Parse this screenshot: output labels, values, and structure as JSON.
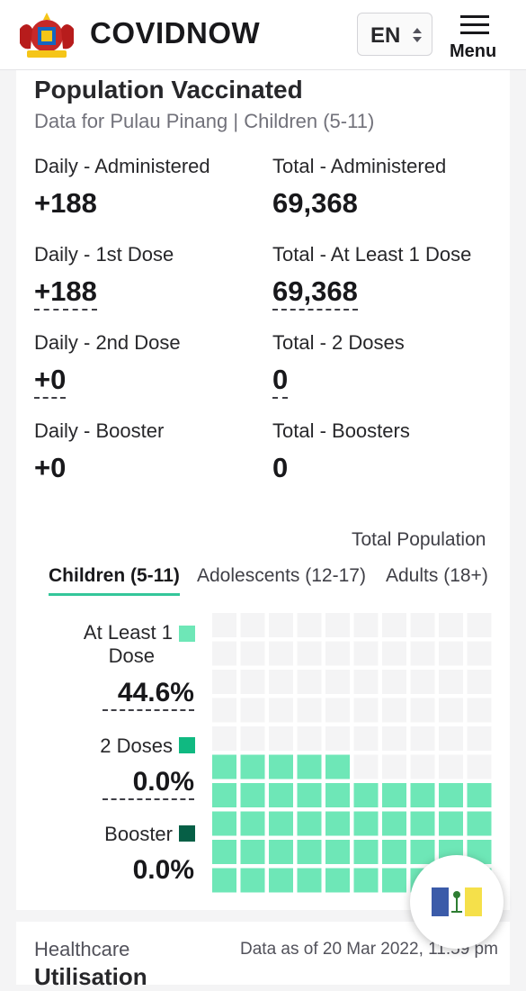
{
  "header": {
    "brand": "COVIDNOW",
    "language": "EN",
    "menu_label": "Menu"
  },
  "card": {
    "title": "Population Vaccinated",
    "subtitle": "Data for Pulau Pinang | Children (5-11)",
    "stats": [
      {
        "label": "Daily - Administered",
        "value": "+188"
      },
      {
        "label": "Total - Administered",
        "value": "69,368"
      },
      {
        "label": "Daily - 1st Dose",
        "value": "+188"
      },
      {
        "label": "Total - At Least 1 Dose",
        "value": "69,368"
      },
      {
        "label": "Daily - 2nd Dose",
        "value": "+0"
      },
      {
        "label": "Total - 2 Doses",
        "value": "0"
      },
      {
        "label": "Daily - Booster",
        "value": "+0"
      },
      {
        "label": "Total - Boosters",
        "value": "0"
      }
    ],
    "total_population_label": "Total Population",
    "tabs": [
      {
        "label": "Children (5-11)",
        "active": true
      },
      {
        "label": "Adolescents (12-17)",
        "active": false
      },
      {
        "label": "Adults (18+)",
        "active": false
      }
    ],
    "waffle": {
      "legend": [
        {
          "label_line1": "At Least 1",
          "label_line2": "Dose",
          "value": "44.6%",
          "color": "#6ee7b7"
        },
        {
          "label_line1": "2 Doses",
          "value": "0.0%",
          "color": "#10b981"
        },
        {
          "label_line1": "Booster",
          "value": "0.0%",
          "color": "#065f46"
        }
      ],
      "filled_fraction": 0.446,
      "empty_color": "#f4f4f5"
    }
  },
  "footer": {
    "title": "Healthcare",
    "subtitle": "Utilisation",
    "date": "Data as of 20 Mar 2022, 11:59 pm"
  },
  "colors": {
    "accent": "#34c69a",
    "header_bg": "#ffffff",
    "page_bg": "#f4f4f5"
  }
}
